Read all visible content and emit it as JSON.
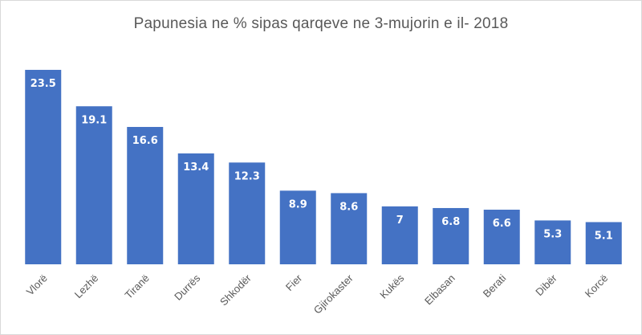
{
  "chart_data": {
    "type": "bar",
    "title": "Papunesia ne % sipas qarqeve ne 3-mujorin e il- 2018",
    "xlabel": "",
    "ylabel": "",
    "ylim": [
      0,
      25
    ],
    "grid": false,
    "legend": "none",
    "bar_color": "#4472c4",
    "categories": [
      "Vlorë",
      "Lezhë",
      "Tiranë",
      "Durrës",
      "Shkodër",
      "Fier",
      "Gjirokaster",
      "Kukës",
      "Elbasan",
      "Berati",
      "Dibër",
      "Korcë"
    ],
    "values": [
      23.5,
      19.1,
      16.6,
      13.4,
      12.3,
      8.9,
      8.6,
      7,
      6.8,
      6.6,
      5.3,
      5.1
    ],
    "value_labels": [
      "23.5",
      "19.1",
      "16.6",
      "13.4",
      "12.3",
      "8.9",
      "8.6",
      "7",
      "6.8",
      "6.6",
      "5.3",
      "5.1"
    ]
  }
}
